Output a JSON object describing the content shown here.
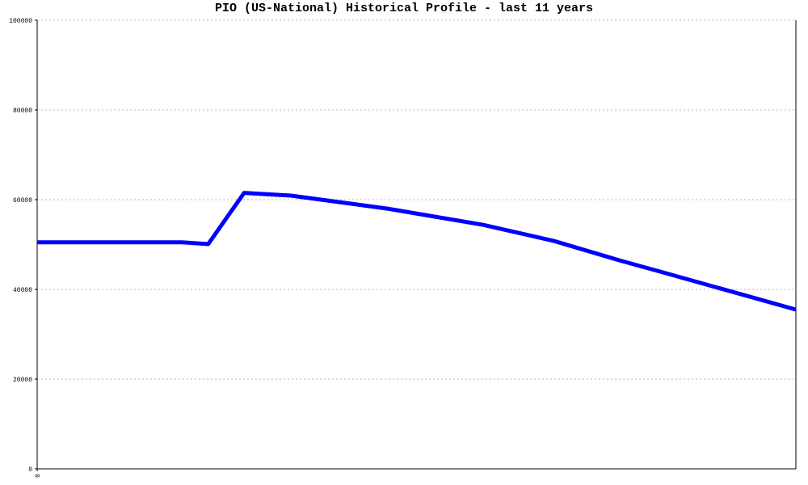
{
  "chart_data": {
    "type": "line",
    "title": "PIO (US-National) Historical Profile - last 11 years",
    "x": [
      0,
      2.1,
      2.48,
      3.0,
      3.68,
      5.08,
      6.46,
      7.49,
      8.48,
      9.0,
      11
    ],
    "series": [
      {
        "color": "#0000ff",
        "values": [
          50500,
          50500,
          50100,
          61500,
          60900,
          58000,
          54400,
          50800,
          46300,
          44100,
          35500
        ]
      }
    ],
    "xlim": [
      0,
      11
    ],
    "xticks": [
      0
    ],
    "ylim": [
      0,
      100000
    ],
    "yticks": [
      0,
      20000,
      40000,
      60000,
      80000,
      100000
    ],
    "grid": true
  }
}
